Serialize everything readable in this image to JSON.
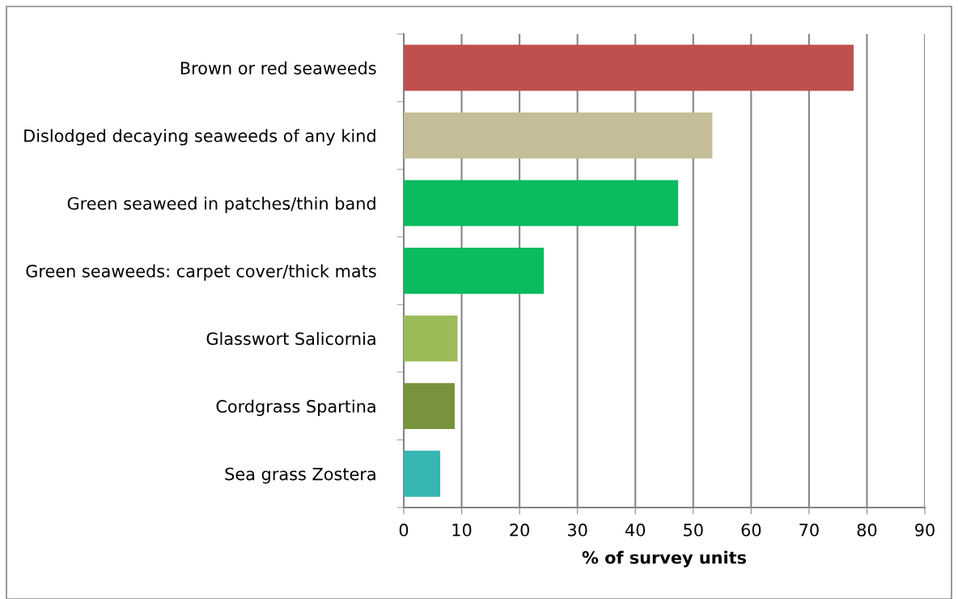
{
  "chart_data": {
    "type": "bar",
    "orientation": "horizontal",
    "xlabel": "% of survey units",
    "categories": [
      "Brown or red seaweeds",
      "Dislodged decaying seaweeds of any kind",
      "Green seaweed in patches/thin band",
      "Green seaweeds: carpet cover/thick mats",
      "Glasswort Salicornia",
      "Cordgrass Spartina",
      "Sea grass Zostera"
    ],
    "values": [
      77.7,
      53.3,
      47.4,
      24.2,
      9.3,
      8.8,
      6.3
    ],
    "colors": [
      "#c0504d",
      "#c4bd97",
      "#0abb5f",
      "#0abb5f",
      "#9bbb59",
      "#77933c",
      "#37b6b2"
    ],
    "xlim": [
      0,
      90
    ],
    "xticks": [
      0,
      10,
      20,
      30,
      40,
      50,
      60,
      70,
      80,
      90
    ],
    "grid": "x"
  }
}
